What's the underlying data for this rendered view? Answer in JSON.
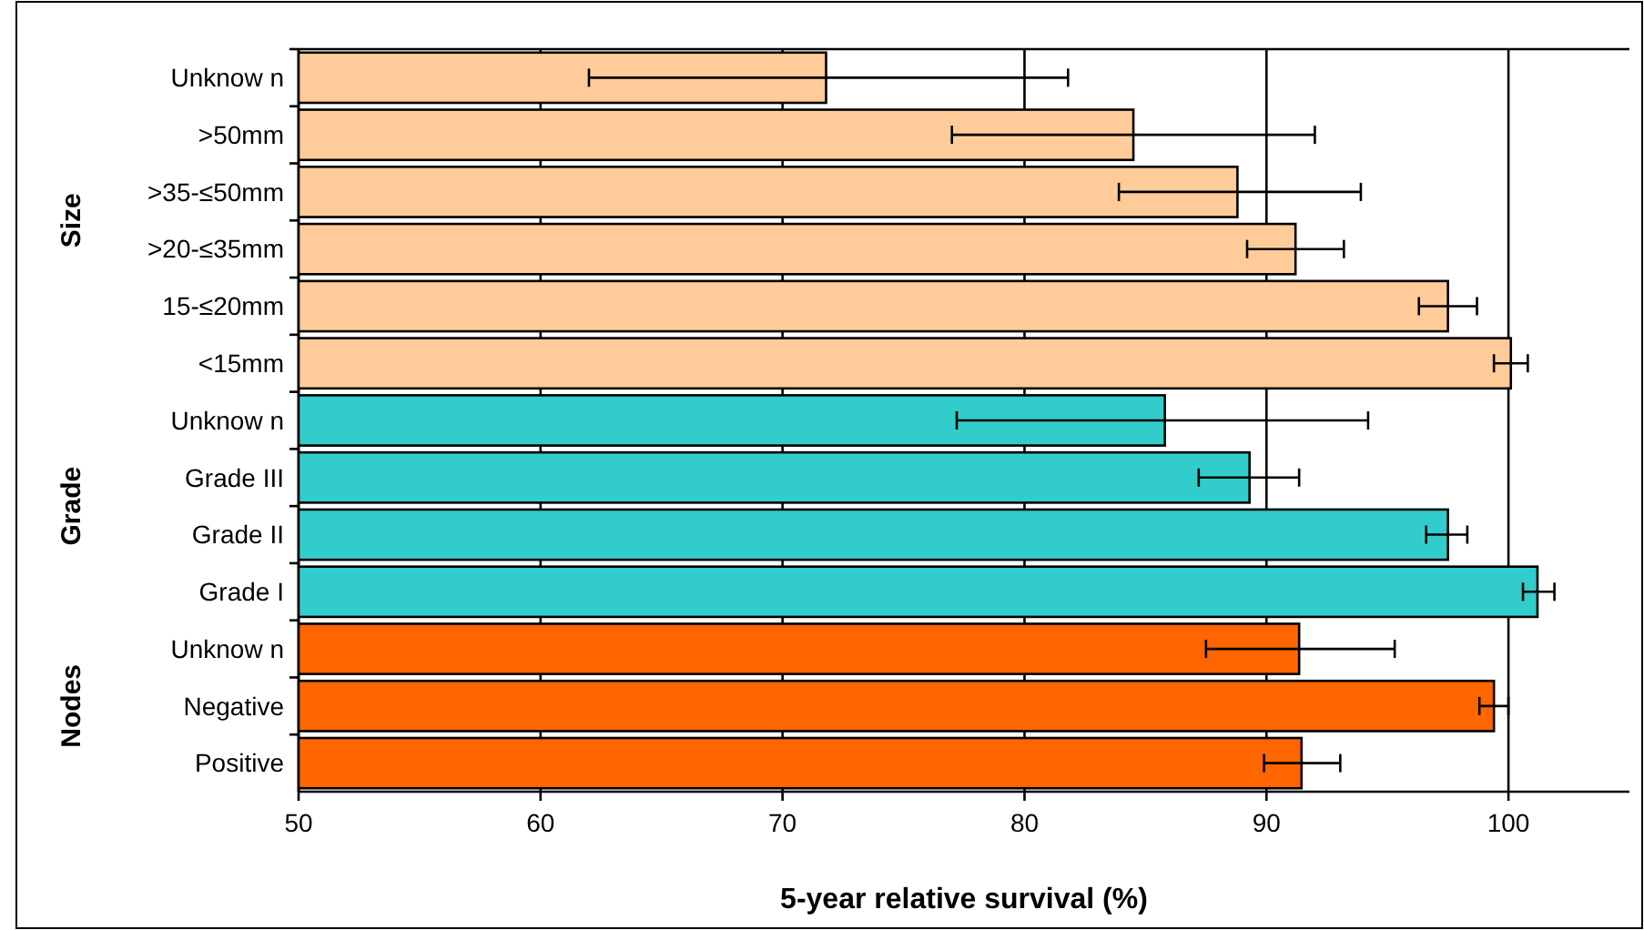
{
  "chart_data": {
    "type": "bar",
    "orientation": "horizontal",
    "xlabel": "5-year relative survival (%)",
    "categories": [
      "Unknow n",
      ">50mm",
      ">35-≤50mm",
      ">20-≤35mm",
      "15-≤20mm",
      "<15mm",
      "Unknow n",
      "Grade III",
      "Grade II",
      "Grade I",
      "Unknow n",
      "Negative",
      "Positive"
    ],
    "values": [
      71.8,
      84.5,
      88.8,
      91.2,
      97.5,
      100.1,
      85.8,
      89.3,
      97.5,
      101.2,
      91.35,
      99.4,
      91.45
    ],
    "errors": [
      [
        62,
        81.8
      ],
      [
        77,
        92
      ],
      [
        83.9,
        93.9
      ],
      [
        89.2,
        93.2
      ],
      [
        96.3,
        98.7
      ],
      [
        99.4,
        100.8
      ],
      [
        77.2,
        94.2
      ],
      [
        87.2,
        91.35
      ],
      [
        96.6,
        98.3
      ],
      [
        100.6,
        101.9
      ],
      [
        87.5,
        95.3
      ],
      [
        98.8,
        100
      ],
      [
        89.9,
        93.05
      ]
    ],
    "colors": [
      "#ffcc99",
      "#ffcc99",
      "#ffcc99",
      "#ffcc99",
      "#ffcc99",
      "#ffcc99",
      "#33cccc",
      "#33cccc",
      "#33cccc",
      "#33cccc",
      "#ff6600",
      "#ff6600",
      "#ff6600"
    ],
    "annotations": [
      "Size",
      "Grade",
      "Nodes"
    ],
    "xlim": [
      50,
      105
    ],
    "xticks": [
      50,
      60,
      70,
      80,
      90,
      100
    ],
    "grid": "x"
  }
}
